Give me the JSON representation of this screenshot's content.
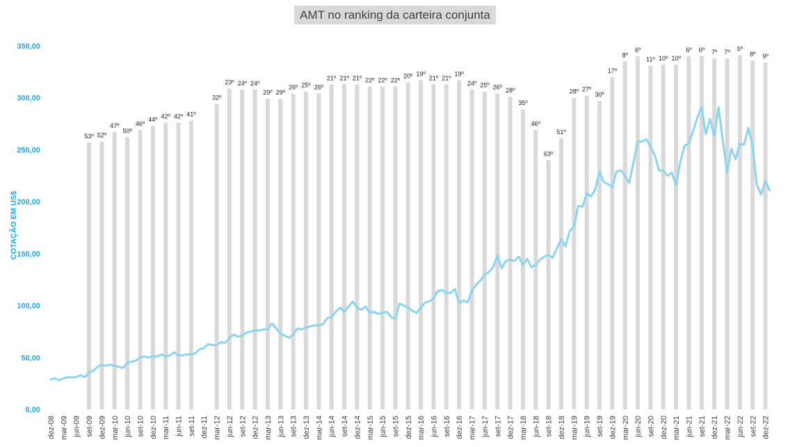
{
  "chart_data": {
    "type": "bar+line",
    "title": "AMT no ranking da carteira conjunta",
    "xlabel": "",
    "ylabel": "COTAÇÃO EM US$",
    "ylim": [
      0,
      350
    ],
    "y_ticks": [
      "0,00",
      "50,00",
      "100,00",
      "150,00",
      "200,00",
      "250,00",
      "300,00",
      "350,00"
    ],
    "y_tick_values": [
      0,
      50,
      100,
      150,
      200,
      250,
      300,
      350
    ],
    "grid": false,
    "categories": [
      "dez-08",
      "mar-09",
      "jun-09",
      "set-09",
      "dez-09",
      "mar-10",
      "jun-10",
      "set-10",
      "dez-10",
      "mar-11",
      "jun-11",
      "set-11",
      "dez-11",
      "mar-12",
      "jun-12",
      "set-12",
      "dez-12",
      "mar-13",
      "jun-13",
      "set-13",
      "dez-13",
      "mar-14",
      "jun-14",
      "set-14",
      "dez-14",
      "mar-15",
      "jun-15",
      "set-15",
      "dez-15",
      "mar-16",
      "jun-16",
      "set-16",
      "dez-16",
      "mar-17",
      "jun-17",
      "set-17",
      "dez-17",
      "mar-18",
      "jun-18",
      "set-18",
      "dez-18",
      "mar-19",
      "jun-19",
      "set-19",
      "dez-19",
      "mar-20",
      "jun-20",
      "set-20",
      "dez-20",
      "mar-21",
      "jun-21",
      "set-21",
      "dez-21",
      "mar-22",
      "jun-22",
      "set-22",
      "dez-22"
    ],
    "bars": {
      "name": "",
      "color": "#d9d9d9",
      "values": [
        null,
        null,
        null,
        257,
        258,
        267,
        262,
        269,
        273,
        276,
        276,
        278,
        null,
        294,
        309,
        308,
        308,
        299,
        299,
        304,
        306,
        304,
        313,
        313,
        313,
        311,
        311,
        311,
        315,
        317,
        313,
        313,
        317,
        308,
        306,
        304,
        301,
        289,
        269,
        240,
        261,
        300,
        302,
        297,
        320,
        335,
        340,
        331,
        332,
        332,
        340,
        340,
        338,
        338,
        341,
        336,
        334
      ],
      "labels": [
        "",
        "",
        "",
        "53º",
        "52º",
        "47º",
        "50º",
        "46º",
        "44º",
        "42º",
        "42º",
        "41º",
        "",
        "32º",
        "23º",
        "24º",
        "24º",
        "29º",
        "29º",
        "26º",
        "25º",
        "26º",
        "21º",
        "21º",
        "21º",
        "22º",
        "22º",
        "22º",
        "20º",
        "19º",
        "21º",
        "21º",
        "19º",
        "24º",
        "25º",
        "26º",
        "28º",
        "35º",
        "46º",
        "63º",
        "51º",
        "28º",
        "27º",
        "30º",
        "17º",
        "8º",
        "6º",
        "11º",
        "10º",
        "10º",
        "6º",
        "6º",
        "7º",
        "7º",
        "5º",
        "8º",
        "9º"
      ]
    },
    "line": {
      "name": "",
      "color": "#8fd3ee",
      "points": [
        [
          0,
          29
        ],
        [
          0.33,
          30
        ],
        [
          0.67,
          28
        ],
        [
          1,
          30
        ],
        [
          1.33,
          31
        ],
        [
          1.67,
          31
        ],
        [
          2,
          31
        ],
        [
          2.33,
          33
        ],
        [
          2.67,
          31
        ],
        [
          3,
          36
        ],
        [
          3.33,
          37
        ],
        [
          3.67,
          41
        ],
        [
          4,
          43
        ],
        [
          4.33,
          42
        ],
        [
          4.67,
          43
        ],
        [
          5,
          42
        ],
        [
          5.33,
          41
        ],
        [
          5.67,
          40
        ],
        [
          6,
          45
        ],
        [
          6.33,
          46
        ],
        [
          6.67,
          47
        ],
        [
          7,
          50
        ],
        [
          7.33,
          51
        ],
        [
          7.67,
          50
        ],
        [
          8,
          51
        ],
        [
          8.33,
          51
        ],
        [
          8.67,
          53
        ],
        [
          9,
          51
        ],
        [
          9.33,
          52
        ],
        [
          9.67,
          55
        ],
        [
          10,
          52
        ],
        [
          10.33,
          52
        ],
        [
          10.67,
          53
        ],
        [
          11,
          53
        ],
        [
          11.33,
          54
        ],
        [
          11.67,
          58
        ],
        [
          12,
          59
        ],
        [
          12.33,
          63
        ],
        [
          12.67,
          62
        ],
        [
          13,
          62
        ],
        [
          13.33,
          65
        ],
        [
          13.67,
          64
        ],
        [
          14,
          69
        ],
        [
          14.33,
          72
        ],
        [
          14.67,
          70
        ],
        [
          15,
          71
        ],
        [
          15.33,
          74
        ],
        [
          15.67,
          75
        ],
        [
          16,
          76
        ],
        [
          16.33,
          76
        ],
        [
          16.67,
          77
        ],
        [
          17,
          77
        ],
        [
          17.33,
          83
        ],
        [
          17.67,
          78
        ],
        [
          18,
          73
        ],
        [
          18.33,
          71
        ],
        [
          18.67,
          69
        ],
        [
          19,
          72
        ],
        [
          19.33,
          78
        ],
        [
          19.67,
          77
        ],
        [
          20,
          79
        ],
        [
          20.33,
          80
        ],
        [
          20.67,
          81
        ],
        [
          21,
          81
        ],
        [
          21.33,
          82
        ],
        [
          21.67,
          88
        ],
        [
          22,
          89
        ],
        [
          22.33,
          94
        ],
        [
          22.67,
          98
        ],
        [
          23,
          94
        ],
        [
          23.33,
          99
        ],
        [
          23.67,
          104
        ],
        [
          24,
          98
        ],
        [
          24.33,
          96
        ],
        [
          24.67,
          99
        ],
        [
          25,
          93
        ],
        [
          25.33,
          94
        ],
        [
          25.67,
          92
        ],
        [
          26,
          93
        ],
        [
          26.33,
          94
        ],
        [
          26.67,
          89
        ],
        [
          27,
          87
        ],
        [
          27.33,
          102
        ],
        [
          27.67,
          100
        ],
        [
          28,
          98
        ],
        [
          28.33,
          95
        ],
        [
          28.67,
          93
        ],
        [
          29,
          98
        ],
        [
          29.33,
          103
        ],
        [
          29.67,
          104
        ],
        [
          30,
          107
        ],
        [
          30.33,
          114
        ],
        [
          30.67,
          115
        ],
        [
          31,
          112
        ],
        [
          31.33,
          112
        ],
        [
          31.67,
          116
        ],
        [
          32,
          102
        ],
        [
          32.33,
          105
        ],
        [
          32.67,
          103
        ],
        [
          33,
          114
        ],
        [
          33.33,
          120
        ],
        [
          33.67,
          124
        ],
        [
          34,
          130
        ],
        [
          34.33,
          132
        ],
        [
          34.67,
          137
        ],
        [
          35,
          148
        ],
        [
          35.33,
          136
        ],
        [
          35.67,
          143
        ],
        [
          36,
          144
        ],
        [
          36.33,
          143
        ],
        [
          36.67,
          147
        ],
        [
          37,
          139
        ],
        [
          37.33,
          145
        ],
        [
          37.67,
          137
        ],
        [
          38,
          139
        ],
        [
          38.33,
          144
        ],
        [
          38.67,
          147
        ],
        [
          39,
          149
        ],
        [
          39.33,
          146
        ],
        [
          39.67,
          155
        ],
        [
          40,
          164
        ],
        [
          40.33,
          157
        ],
        [
          40.67,
          172
        ],
        [
          41,
          176
        ],
        [
          41.33,
          196
        ],
        [
          41.67,
          195
        ],
        [
          42,
          208
        ],
        [
          42.33,
          205
        ],
        [
          42.67,
          212
        ],
        [
          43,
          229
        ],
        [
          43.33,
          219
        ],
        [
          43.67,
          217
        ],
        [
          44,
          214
        ],
        [
          44.33,
          229
        ],
        [
          44.67,
          230
        ],
        [
          45,
          225
        ],
        [
          45.33,
          218
        ],
        [
          45.67,
          238
        ],
        [
          46,
          258
        ],
        [
          46.33,
          258
        ],
        [
          46.67,
          260
        ],
        [
          47,
          253
        ],
        [
          47.33,
          245
        ],
        [
          47.67,
          230
        ],
        [
          48,
          230
        ],
        [
          48.33,
          225
        ],
        [
          48.67,
          228
        ],
        [
          49,
          216
        ],
        [
          49.33,
          238
        ],
        [
          49.67,
          254
        ],
        [
          50,
          256
        ],
        [
          50.33,
          268
        ],
        [
          50.67,
          281
        ],
        [
          51,
          291
        ],
        [
          51.33,
          265
        ],
        [
          51.67,
          280
        ],
        [
          52,
          263
        ],
        [
          52.33,
          291
        ],
        [
          52.67,
          258
        ],
        [
          53,
          228
        ],
        [
          53.33,
          251
        ],
        [
          53.67,
          241
        ],
        [
          54,
          256
        ],
        [
          54.33,
          255
        ],
        [
          54.67,
          271
        ],
        [
          55,
          253
        ],
        [
          55.33,
          216
        ],
        [
          55.67,
          207
        ],
        [
          56,
          220
        ],
        [
          56.33,
          211
        ]
      ]
    }
  }
}
